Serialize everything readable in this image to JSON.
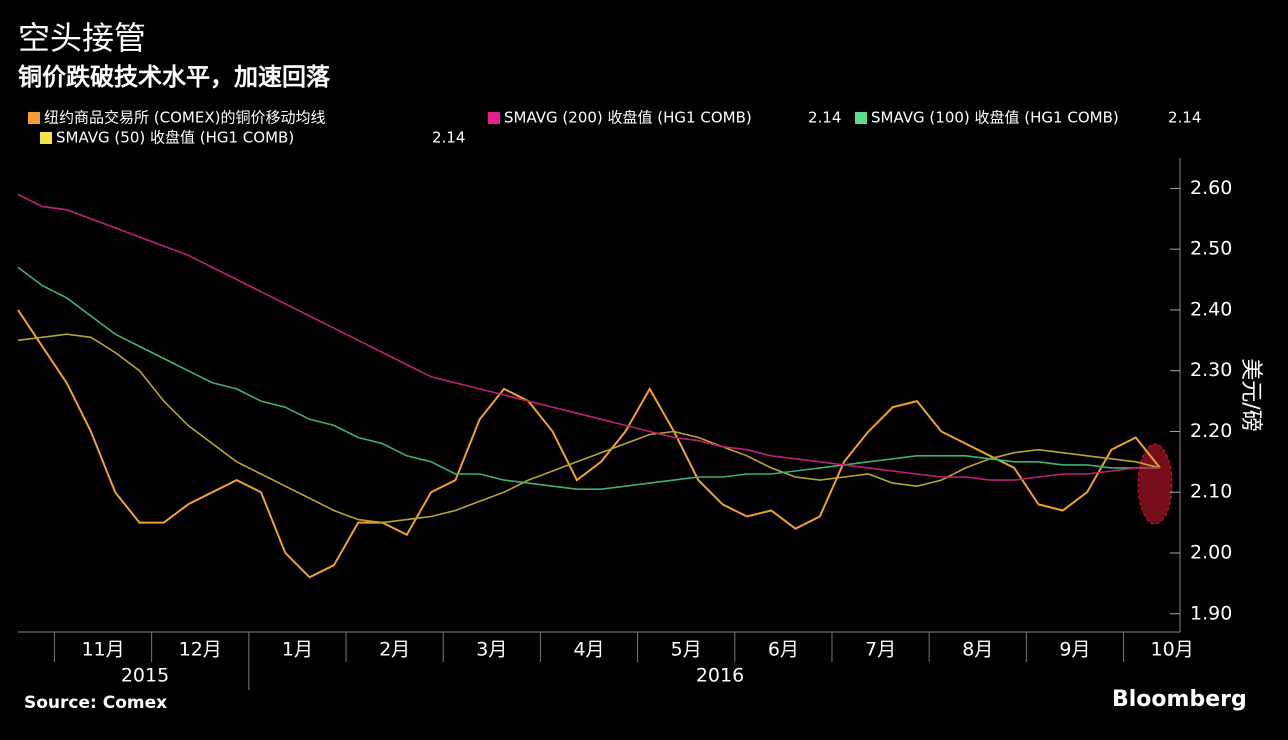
{
  "chart_data": {
    "type": "line",
    "title": "空头接管",
    "subtitle": "铜价跌破技术水平，加速回落",
    "y_axis_label": "美元/磅",
    "source": "Source: Comex",
    "brand": "Bloomberg",
    "year_labels": [
      "2015",
      "2016"
    ],
    "categories": [
      null,
      null,
      null,
      "11月",
      null,
      null,
      null,
      "12月",
      null,
      null,
      null,
      "1月",
      null,
      null,
      null,
      "2月",
      null,
      null,
      null,
      "3月",
      null,
      null,
      null,
      "4月",
      null,
      null,
      null,
      "5月",
      null,
      null,
      null,
      "6月",
      null,
      null,
      null,
      "7月",
      null,
      null,
      null,
      "8月",
      null,
      null,
      null,
      "9月",
      null,
      null,
      null,
      "10月"
    ],
    "series": [
      {
        "name": "纽约商品交易所 (COMEX)的铜价移动均线",
        "color": "#f0a030",
        "values": [
          2.4,
          2.34,
          2.28,
          2.2,
          2.1,
          2.05,
          2.05,
          2.08,
          2.1,
          2.12,
          2.1,
          2.0,
          1.96,
          1.98,
          2.05,
          2.05,
          2.03,
          2.1,
          2.12,
          2.22,
          2.27,
          2.25,
          2.2,
          2.12,
          2.15,
          2.2,
          2.27,
          2.2,
          2.12,
          2.08,
          2.06,
          2.07,
          2.04,
          2.06,
          2.15,
          2.2,
          2.24,
          2.25,
          2.2,
          2.18,
          2.16,
          2.14,
          2.08,
          2.07,
          2.1,
          2.17,
          2.19,
          2.14
        ]
      },
      {
        "name": "SMAVG (200) 收盘值 (HG1 COMB)",
        "color": "#c0207a",
        "legend_color": "#e8208f",
        "last_value": 2.14,
        "values": [
          2.59,
          2.57,
          2.565,
          2.55,
          2.535,
          2.52,
          2.505,
          2.49,
          2.47,
          2.45,
          2.43,
          2.41,
          2.39,
          2.37,
          2.35,
          2.33,
          2.31,
          2.29,
          2.28,
          2.27,
          2.26,
          2.25,
          2.24,
          2.23,
          2.22,
          2.21,
          2.2,
          2.19,
          2.185,
          2.175,
          2.17,
          2.16,
          2.155,
          2.15,
          2.145,
          2.14,
          2.135,
          2.13,
          2.125,
          2.125,
          2.12,
          2.12,
          2.125,
          2.13,
          2.13,
          2.135,
          2.14,
          2.14
        ]
      },
      {
        "name": "SMAVG (100) 收盘值 (HG1 COMB)",
        "color": "#3cb371",
        "legend_color": "#5cdc8c",
        "last_value": 2.14,
        "values": [
          2.47,
          2.44,
          2.42,
          2.39,
          2.36,
          2.34,
          2.32,
          2.3,
          2.28,
          2.27,
          2.25,
          2.24,
          2.22,
          2.21,
          2.19,
          2.18,
          2.16,
          2.15,
          2.13,
          2.13,
          2.12,
          2.115,
          2.11,
          2.105,
          2.105,
          2.11,
          2.115,
          2.12,
          2.125,
          2.125,
          2.13,
          2.13,
          2.135,
          2.14,
          2.145,
          2.15,
          2.155,
          2.16,
          2.16,
          2.16,
          2.155,
          2.15,
          2.15,
          2.145,
          2.145,
          2.14,
          2.14,
          2.14
        ]
      },
      {
        "name": "SMAVG (50) 收盘值 (HG1 COMB)",
        "color": "#b8a62a",
        "legend_color": "#f0e448",
        "last_value": 2.14,
        "values": [
          2.35,
          2.355,
          2.36,
          2.355,
          2.33,
          2.3,
          2.25,
          2.21,
          2.18,
          2.15,
          2.13,
          2.11,
          2.09,
          2.07,
          2.055,
          2.05,
          2.055,
          2.06,
          2.07,
          2.085,
          2.1,
          2.12,
          2.135,
          2.15,
          2.165,
          2.18,
          2.195,
          2.2,
          2.19,
          2.175,
          2.16,
          2.14,
          2.125,
          2.12,
          2.125,
          2.13,
          2.115,
          2.11,
          2.12,
          2.14,
          2.155,
          2.165,
          2.17,
          2.165,
          2.16,
          2.155,
          2.15,
          2.14
        ]
      }
    ],
    "ylim": [
      1.87,
      2.65
    ],
    "yticks": [
      {
        "value": 1.9,
        "label": "1.90"
      },
      {
        "value": 2.0,
        "label": "2.00"
      },
      {
        "value": 2.1,
        "label": "2.10"
      },
      {
        "value": 2.2,
        "label": "2.20"
      },
      {
        "value": 2.3,
        "label": "2.30"
      },
      {
        "value": 2.4,
        "label": "2.40"
      },
      {
        "value": 2.5,
        "label": "2.50"
      },
      {
        "value": 2.6,
        "label": "2.60"
      }
    ],
    "grid": false
  }
}
